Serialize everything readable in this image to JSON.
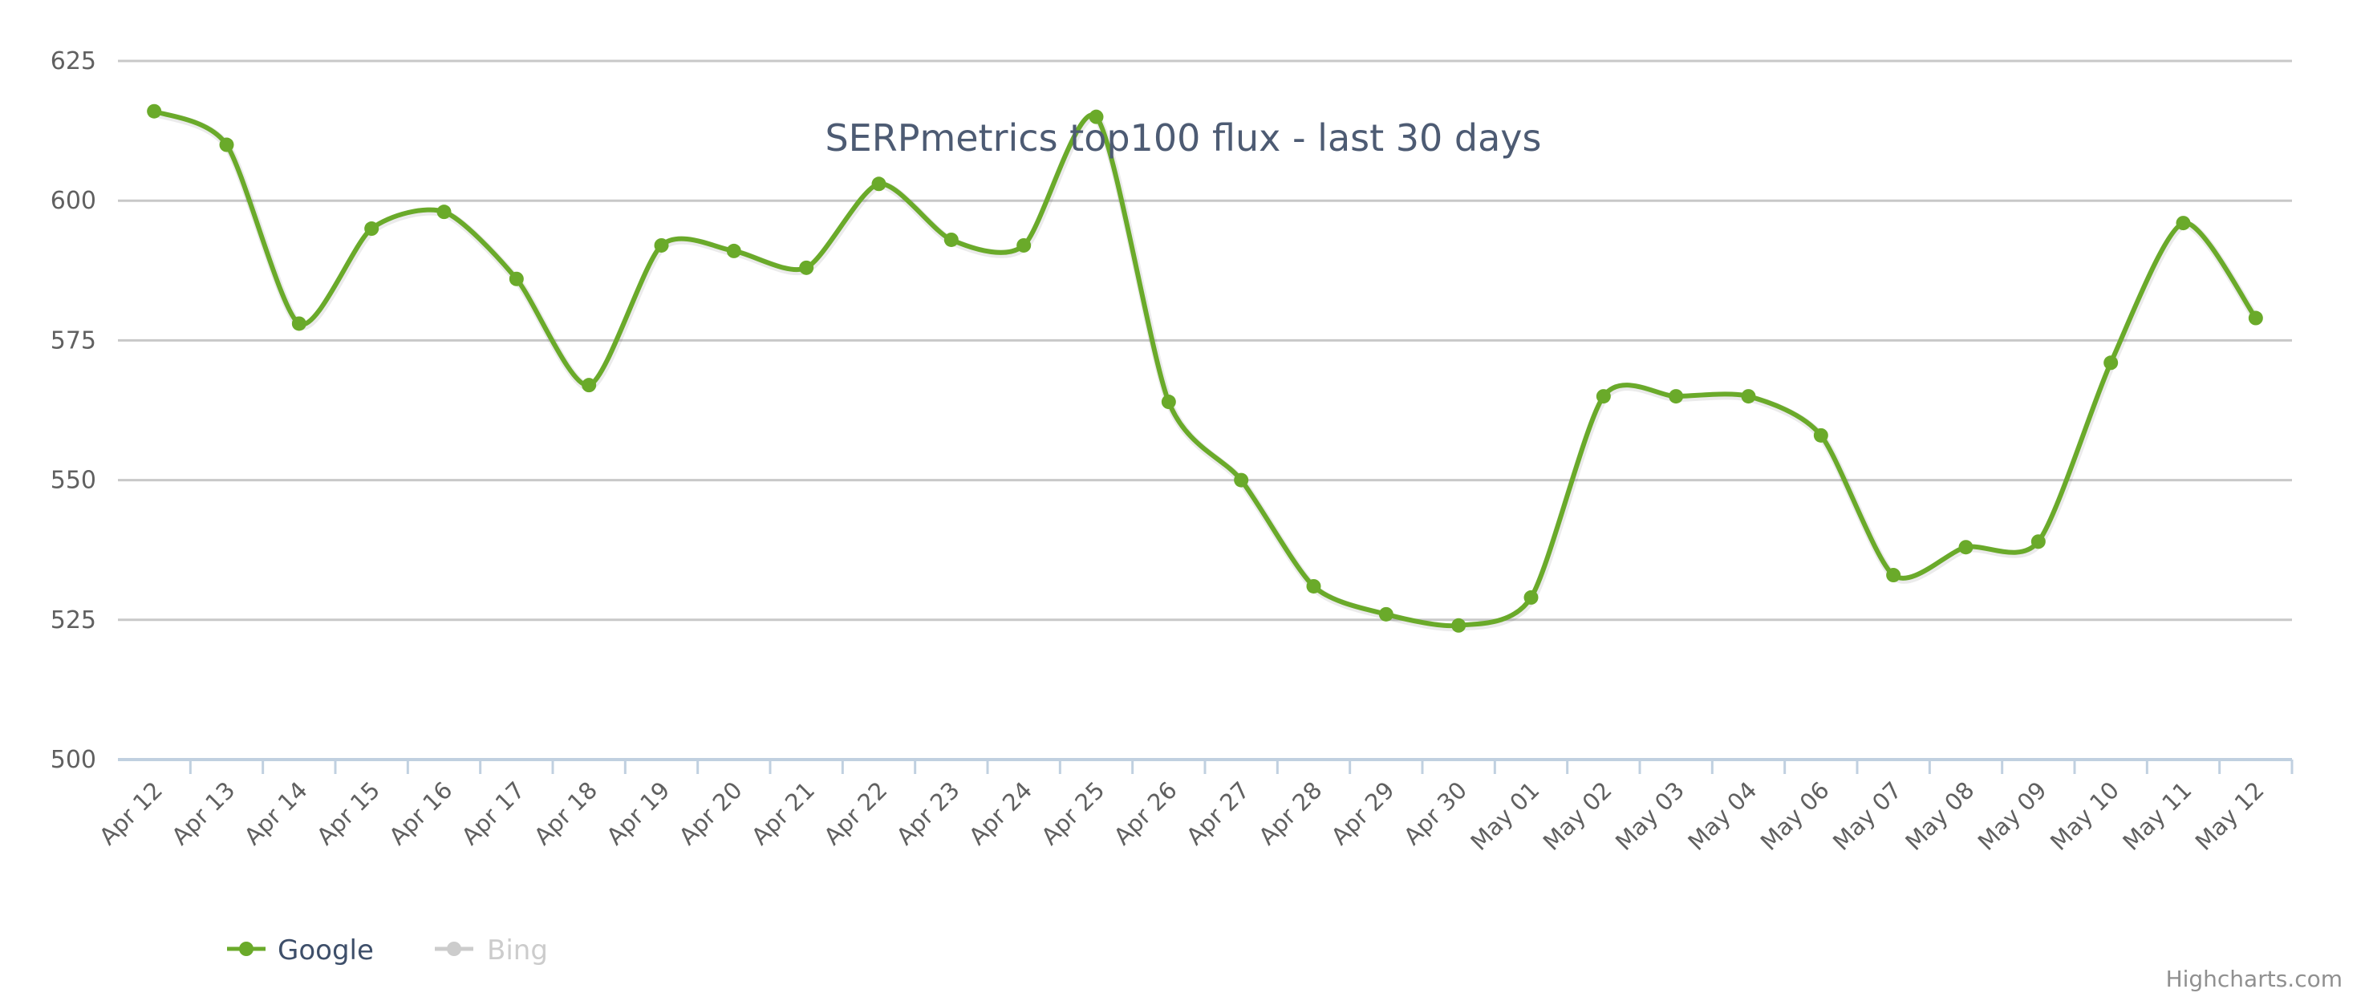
{
  "chart_data": {
    "type": "line",
    "title": "SERPmetrics top100 flux - last 30 days",
    "xlabel": "",
    "ylabel": "",
    "ylim": [
      500,
      625
    ],
    "yticks": [
      500,
      525,
      550,
      575,
      600,
      625
    ],
    "grid": true,
    "legend_position": "bottom-left",
    "categories": [
      "Apr 12",
      "Apr 13",
      "Apr 14",
      "Apr 15",
      "Apr 16",
      "Apr 17",
      "Apr 18",
      "Apr 19",
      "Apr 20",
      "Apr 21",
      "Apr 22",
      "Apr 23",
      "Apr 24",
      "Apr 25",
      "Apr 26",
      "Apr 27",
      "Apr 28",
      "Apr 29",
      "Apr 30",
      "May 01",
      "May 02",
      "May 03",
      "May 04",
      "May 06",
      "May 07",
      "May 08",
      "May 09",
      "May 10",
      "May 11",
      "May 12"
    ],
    "series": [
      {
        "name": "Google",
        "color": "#6aaa2a",
        "visible": true,
        "values": [
          616,
          610,
          578,
          595,
          598,
          586,
          567,
          592,
          591,
          588,
          603,
          593,
          592,
          615,
          564,
          550,
          531,
          526,
          524,
          529,
          565,
          565,
          565,
          558,
          533,
          538,
          539,
          571,
          596,
          579
        ]
      },
      {
        "name": "Bing",
        "color": "#cccccc",
        "visible": false,
        "values": []
      }
    ]
  },
  "legend": {
    "items": [
      {
        "label": "Google",
        "color": "#6aaa2a",
        "text_color": "#3e4f6a",
        "active": true
      },
      {
        "label": "Bing",
        "color": "#cccccc",
        "text_color": "#cccccc",
        "active": false
      }
    ]
  },
  "credits": "Highcharts.com",
  "colors": {
    "grid": "#c8c8c8",
    "axis": "#c0d0e0",
    "label": "#606060",
    "title": "#4d5b73"
  }
}
